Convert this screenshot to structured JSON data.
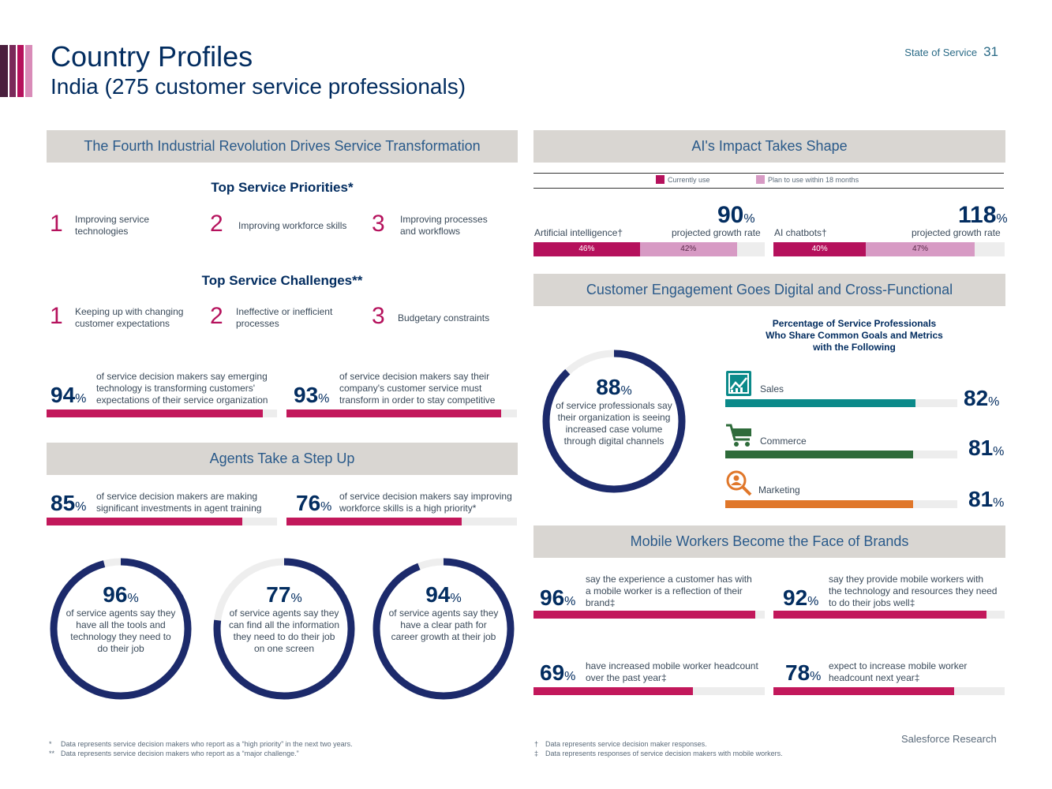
{
  "header": {
    "title": "Country Profiles",
    "subtitle": "India (275 customer service professionals)",
    "report_name": "State of Service",
    "page_number": "31",
    "stripe_colors": [
      "#4a1f3d",
      "#b5115c",
      "#d98bb8"
    ]
  },
  "left": {
    "band1": "The Fourth Industrial Revolution Drives Service Transformation",
    "priorities": {
      "heading": "Top Service Priorities*",
      "items": [
        {
          "rank": "1",
          "text": "Improving service technologies"
        },
        {
          "rank": "2",
          "text": "Improving workforce skills"
        },
        {
          "rank": "3",
          "text": "Improving processes and workflows"
        }
      ]
    },
    "challenges": {
      "heading": "Top Service Challenges**",
      "items": [
        {
          "rank": "1",
          "text": "Keeping up with changing customer expectations"
        },
        {
          "rank": "2",
          "text": "Ineffective or inefficient processes"
        },
        {
          "rank": "3",
          "text": "Budgetary constraints"
        }
      ]
    },
    "stats1": [
      {
        "value": "94",
        "unit": "%",
        "text": "of service decision makers say emerging technology is transforming customers' expectations of their service organization",
        "fill": 0.94
      },
      {
        "value": "93",
        "unit": "%",
        "text": "of service decision makers say their company's customer service must transform in order to stay competitive",
        "fill": 0.93
      }
    ],
    "band2": "Agents Take a Step Up",
    "stats2": [
      {
        "value": "85",
        "unit": "%",
        "text": "of service decision makers are making significant investments in agent training",
        "fill": 0.85
      },
      {
        "value": "76",
        "unit": "%",
        "text": "of service decision makers say improving workforce skills is a high priority*",
        "fill": 0.76
      }
    ],
    "rings": [
      {
        "value": "96",
        "unit": "%",
        "text": "of service agents say they have all the tools and technology they need to do their job",
        "fill": 0.96
      },
      {
        "value": "77",
        "unit": "%",
        "text": "of service agents say they can find all the information they need to do their job on one screen",
        "fill": 0.77
      },
      {
        "value": "94",
        "unit": "%",
        "text": "of service agents say they have a clear path for career growth at their job",
        "fill": 0.94
      }
    ]
  },
  "right": {
    "band1": "AI's Impact Takes Shape",
    "legend": {
      "current": "Currently use",
      "plan": "Plan to use within 18 months",
      "current_color": "#b5115c",
      "plan_color": "#d79ac4"
    },
    "ai": [
      {
        "label": "Artificial intelligence†",
        "growth": "90",
        "unit": "%",
        "growth_label": "projected growth rate",
        "current": "46%",
        "plan": "42%",
        "current_val": 46,
        "plan_val": 42
      },
      {
        "label": "AI chatbots†",
        "growth": "118",
        "unit": "%",
        "growth_label": "projected growth rate",
        "current": "40%",
        "plan": "47%",
        "current_val": 40,
        "plan_val": 47
      }
    ],
    "band2": "Customer Engagement Goes Digital and Cross-Functional",
    "ring": {
      "value": "88",
      "unit": "%",
      "text": "of service professionals say their organization is seeing increased case volume through digital channels",
      "fill": 0.88
    },
    "functions_heading": "Percentage of Service Professionals Who Share Common Goals and Metrics with the Following",
    "functions": [
      {
        "name": "Sales",
        "value": "82",
        "unit": "%",
        "icon": "sales-chart-icon",
        "color": "#0b8a8a",
        "fill": 0.82
      },
      {
        "name": "Commerce",
        "value": "81",
        "unit": "%",
        "icon": "shopping-cart-icon",
        "color": "#2e6b3a",
        "fill": 0.81
      },
      {
        "name": "Marketing",
        "value": "81",
        "unit": "%",
        "icon": "magnifier-icon",
        "color": "#e0772a",
        "fill": 0.81
      }
    ],
    "band3": "Mobile Workers Become the Face of Brands",
    "mobile": [
      {
        "value": "96",
        "unit": "%",
        "text": "say the experience a customer has with a mobile worker is a reflection of their brand‡",
        "fill": 0.96
      },
      {
        "value": "92",
        "unit": "%",
        "text": "say they provide mobile workers with the technology and resources they need to do their jobs well‡",
        "fill": 0.92
      },
      {
        "value": "69",
        "unit": "%",
        "text": "have increased mobile worker headcount over the past year‡",
        "fill": 0.69
      },
      {
        "value": "78",
        "unit": "%",
        "text": "expect to increase mobile worker headcount next year‡",
        "fill": 0.78
      }
    ]
  },
  "footnotes": {
    "left": [
      {
        "mark": "*",
        "text": "Data represents service decision makers who report as a “high priority” in the next two years."
      },
      {
        "mark": "**",
        "text": "Data represents service decision makers who report as a “major challenge.”"
      }
    ],
    "right": [
      {
        "mark": "†",
        "text": "Data represents service decision maker responses."
      },
      {
        "mark": "‡",
        "text": "Data represents responses of service decision makers with mobile workers."
      }
    ],
    "brand": "Salesforce Research"
  }
}
